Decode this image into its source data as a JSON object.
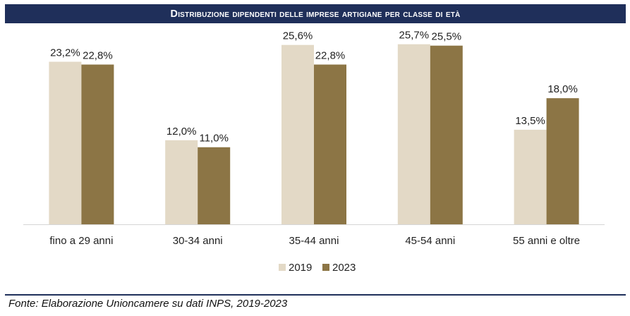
{
  "title": "Distribuzione dipendenti delle imprese artigiane per classe di età",
  "source": "Fonte: Elaborazione Unioncamere su dati INPS, 2019-2023",
  "chart_data": {
    "type": "bar",
    "categories": [
      "fino a 29 anni",
      "30-34 anni",
      "35-44 anni",
      "45-54 anni",
      "55 anni e oltre"
    ],
    "series": [
      {
        "name": "2019",
        "values": [
          23.2,
          12.0,
          25.6,
          25.7,
          13.5
        ],
        "labels": [
          "23,2%",
          "12,0%",
          "25,6%",
          "25,7%",
          "13,5%"
        ],
        "color": "#e3d9c6"
      },
      {
        "name": "2023",
        "values": [
          22.8,
          11.0,
          22.8,
          25.5,
          18.0
        ],
        "labels": [
          "22,8%",
          "11,0%",
          "22,8%",
          "25,5%",
          "18,0%"
        ],
        "color": "#8c7545"
      }
    ],
    "ylim": [
      0,
      30
    ],
    "grid": false,
    "legend": "bottom"
  }
}
